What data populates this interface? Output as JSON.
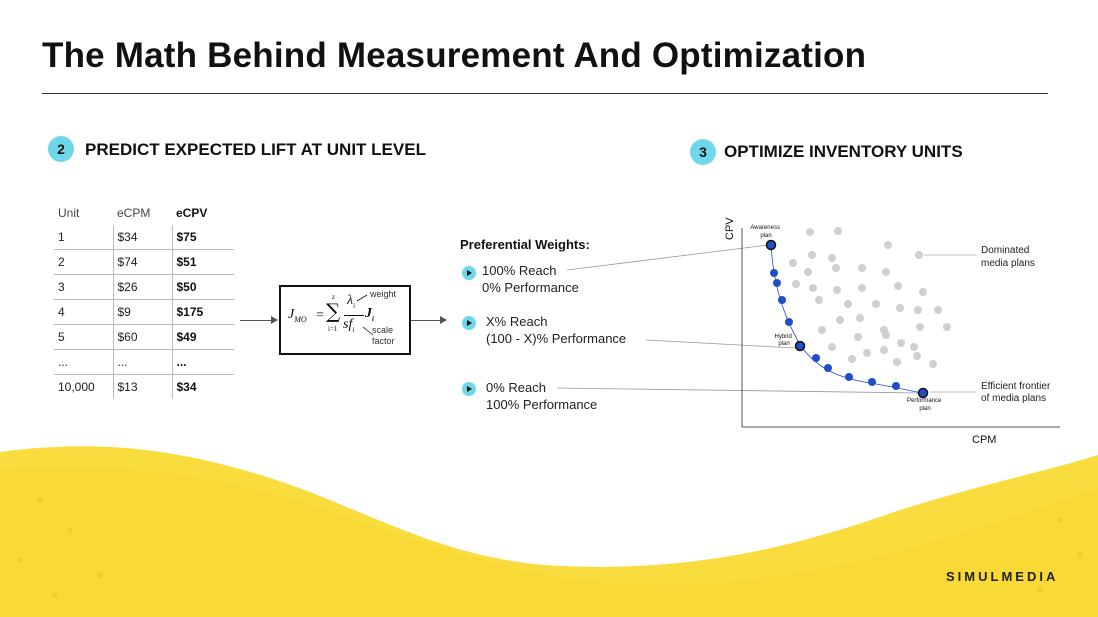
{
  "slide": {
    "title": "The Math Behind Measurement And Optimization",
    "brand": "SIMULMEDIA",
    "colors": {
      "accent_cyan": "#6fd7ea",
      "wave_yellow": "#f9dc3d",
      "point_blue": "#1f4ec8",
      "point_gray": "#cfcfcf"
    }
  },
  "step2": {
    "number": "2",
    "title": "PREDICT EXPECTED LIFT AT UNIT LEVEL",
    "table": {
      "headers": [
        "Unit",
        "eCPM",
        "eCPV"
      ],
      "rows": [
        [
          "1",
          "$34",
          "$75"
        ],
        [
          "2",
          "$74",
          "$51"
        ],
        [
          "3",
          "$26",
          "$50"
        ],
        [
          "4",
          "$9",
          "$175"
        ],
        [
          "5",
          "$60",
          "$49"
        ],
        [
          "...",
          "...",
          "..."
        ],
        [
          "10,000",
          "$13",
          "$34"
        ]
      ]
    },
    "formula": {
      "lhs": "J",
      "lhs_sub": "MO",
      "sum_top": "z",
      "sum_bottom": "i=1",
      "numerator": "λ",
      "numerator_sub": "i",
      "denominator": "sf",
      "denominator_sub": "i",
      "term": "J",
      "term_sub": "i",
      "weight_label": "weight",
      "scale_label_1": "scale",
      "scale_label_2": "factor"
    }
  },
  "step3": {
    "number": "3",
    "title": "OPTIMIZE INVENTORY UNITS",
    "preferential_weights": {
      "title": "Preferential Weights:",
      "options": [
        {
          "line1": "100% Reach",
          "line2": "0% Performance"
        },
        {
          "line1": "X% Reach",
          "line2": "(100 - X)% Performance"
        },
        {
          "line1": "0% Reach",
          "line2": "100% Performance"
        }
      ]
    },
    "chart": {
      "xlabel": "CPM",
      "ylabel": "CPV",
      "point_labels": {
        "awareness": [
          "Awareness",
          "plan"
        ],
        "hybrid": [
          "Hybrid",
          "plan"
        ],
        "performance": [
          "Performance",
          "plan"
        ]
      },
      "legend": {
        "dominated": [
          "Dominated",
          "media plans"
        ],
        "frontier": [
          "Efficient frontier",
          "of media plans"
        ]
      }
    }
  }
}
